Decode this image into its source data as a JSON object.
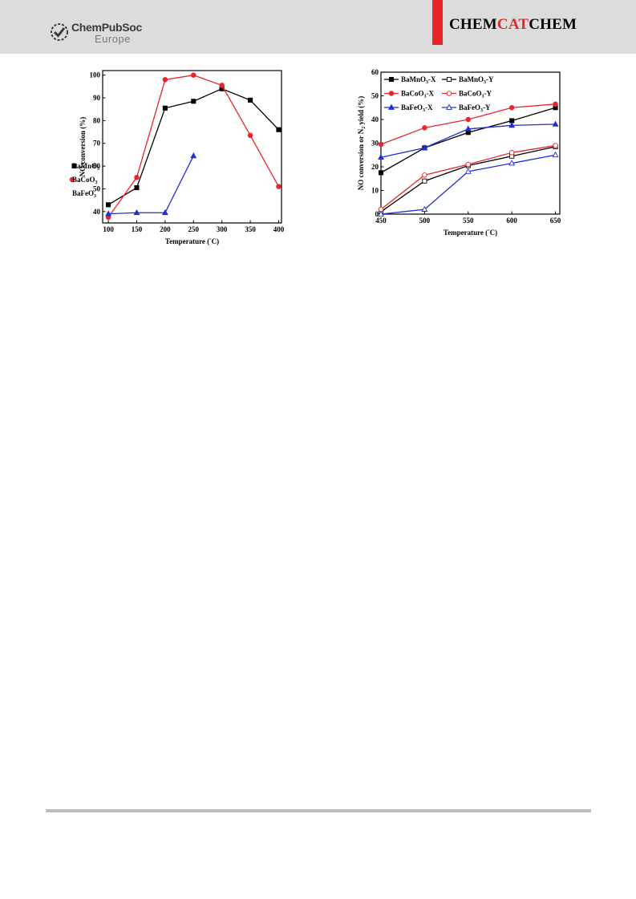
{
  "header": {
    "logo_line1": "ChemPubSoc",
    "logo_line2": "Europe",
    "journal_part1": "CHEM",
    "journal_part2": "CAT",
    "journal_part3": "CHEM",
    "accent_color": "#e8262a"
  },
  "chart_data": [
    {
      "type": "line",
      "title": "",
      "xlabel": "Temperature (°C)",
      "ylabel": "NO conversion (%)",
      "xlim": [
        90,
        405
      ],
      "ylim": [
        35,
        102
      ],
      "xticks": [
        100,
        150,
        200,
        250,
        300,
        350,
        400
      ],
      "yticks": [
        40,
        50,
        60,
        70,
        80,
        90,
        100
      ],
      "grid": false,
      "legend": "right-center",
      "series": [
        {
          "name": "BaMnO3",
          "color": "#000000",
          "marker": "square",
          "filled": true,
          "x": [
            100,
            150,
            200,
            250,
            300,
            350,
            400
          ],
          "y": [
            43,
            50.5,
            85.5,
            88.5,
            94,
            89,
            76
          ]
        },
        {
          "name": "BaCoO3",
          "color": "#e8262a",
          "marker": "circle",
          "filled": true,
          "x": [
            100,
            150,
            200,
            250,
            300,
            350,
            400
          ],
          "y": [
            37.5,
            55,
            98,
            100,
            95.5,
            73.5,
            51
          ]
        },
        {
          "name": "BaFeO3",
          "color": "#1f2fd0",
          "marker": "triangle",
          "filled": true,
          "x": [
            100,
            150,
            200,
            250
          ],
          "y": [
            39,
            39.5,
            39.5,
            64.5
          ]
        }
      ]
    },
    {
      "type": "line",
      "title": "",
      "xlabel": "Temperature (°C)",
      "ylabel": "NO conversion or N2 yield (%)",
      "xlim": [
        450,
        655
      ],
      "ylim": [
        0,
        60
      ],
      "xticks": [
        450,
        500,
        550,
        600,
        650
      ],
      "yticks": [
        0,
        10,
        20,
        30,
        40,
        50,
        60
      ],
      "grid": false,
      "legend": "top-left",
      "series": [
        {
          "name": "BaMnO3-X",
          "color": "#000000",
          "marker": "square",
          "filled": true,
          "x": [
            450,
            500,
            550,
            600,
            650
          ],
          "y": [
            17.5,
            28,
            34.5,
            39.5,
            45
          ]
        },
        {
          "name": "BaMnO3-Y",
          "color": "#000000",
          "marker": "square",
          "filled": false,
          "x": [
            450,
            500,
            550,
            600,
            650
          ],
          "y": [
            1,
            14,
            20.5,
            24.5,
            28.5
          ]
        },
        {
          "name": "BaCoO3-X",
          "color": "#e8262a",
          "marker": "circle",
          "filled": true,
          "x": [
            450,
            500,
            550,
            600,
            650
          ],
          "y": [
            29.5,
            36.5,
            40,
            45,
            46.5
          ]
        },
        {
          "name": "BaCoO3-Y",
          "color": "#e8262a",
          "marker": "circle",
          "filled": false,
          "x": [
            450,
            500,
            550,
            600,
            650
          ],
          "y": [
            2,
            16.5,
            21,
            26,
            29
          ]
        },
        {
          "name": "BaFeO3-X",
          "color": "#1f2fd0",
          "marker": "triangle",
          "filled": true,
          "x": [
            450,
            500,
            550,
            600,
            650
          ],
          "y": [
            24,
            28,
            36,
            37.5,
            38
          ]
        },
        {
          "name": "BaFeO3-Y",
          "color": "#1f2fd0",
          "marker": "triangle",
          "filled": false,
          "x": [
            450,
            500,
            550,
            600,
            650
          ],
          "y": [
            0,
            2,
            18,
            21.5,
            25
          ]
        }
      ]
    }
  ]
}
